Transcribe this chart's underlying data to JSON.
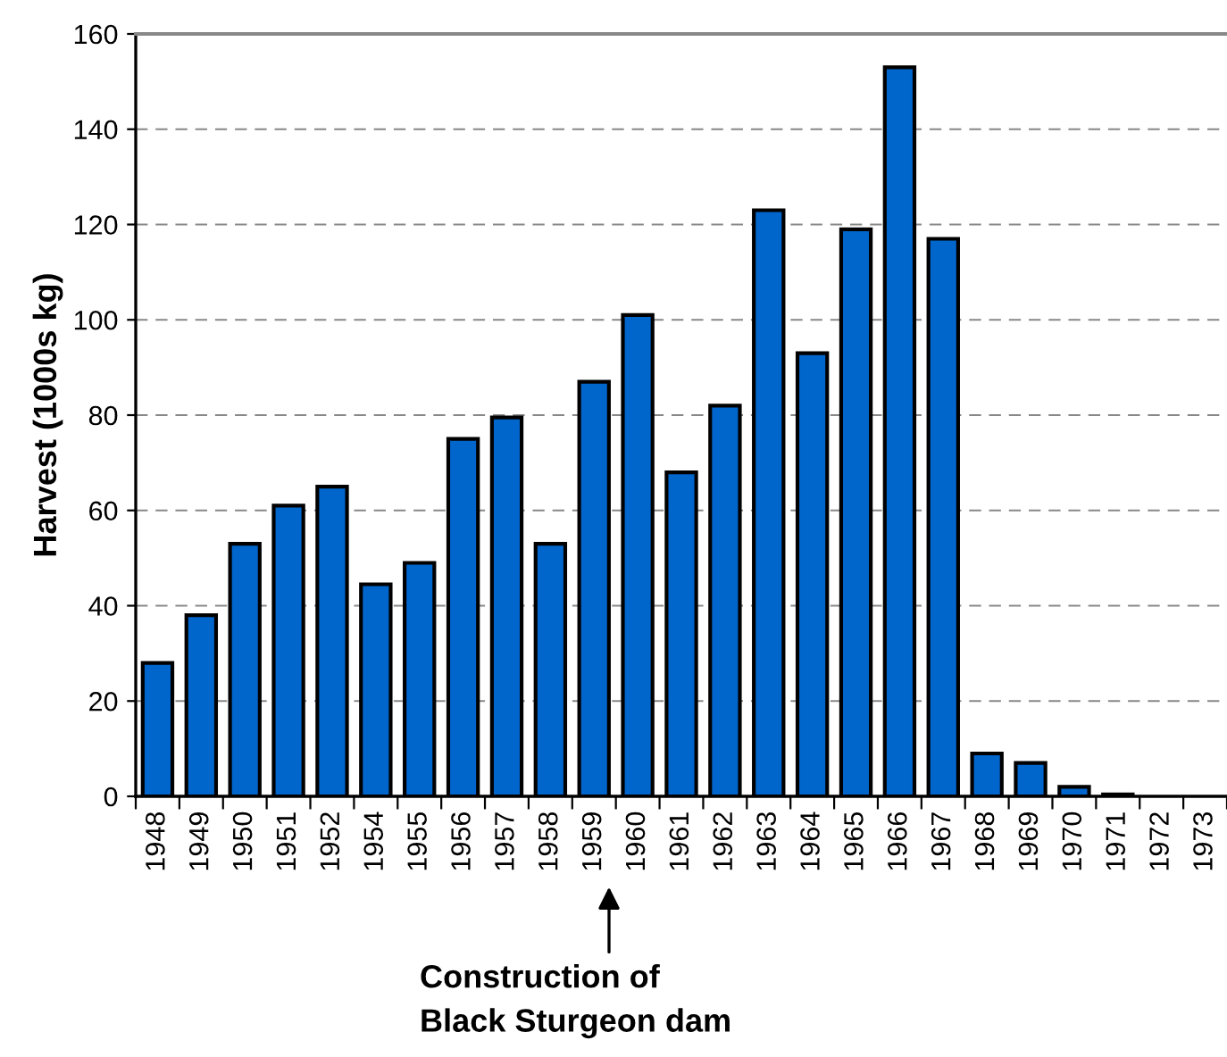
{
  "chart_data": {
    "type": "bar",
    "ylabel": "Harvest (1000s kg)",
    "categories": [
      "1948",
      "1949",
      "1950",
      "1951",
      "1952",
      "1954",
      "1955",
      "1956",
      "1957",
      "1958",
      "1959",
      "1960",
      "1961",
      "1962",
      "1963",
      "1964",
      "1965",
      "1966",
      "1967",
      "1968",
      "1969",
      "1970",
      "1971",
      "1972",
      "1973"
    ],
    "values": [
      28,
      38,
      53,
      61,
      65,
      44.5,
      49,
      75,
      79.5,
      53,
      87,
      101,
      68,
      82,
      123,
      93,
      119,
      153,
      117,
      9,
      7,
      2,
      0.4,
      null,
      null
    ],
    "color": "#0066cc",
    "ylim": [
      0,
      160
    ],
    "yticks": [
      0,
      20,
      40,
      60,
      80,
      100,
      120,
      140,
      160
    ],
    "grid": "y",
    "annotations": [
      "Construction of\nBlack Sturgeon dam"
    ]
  }
}
